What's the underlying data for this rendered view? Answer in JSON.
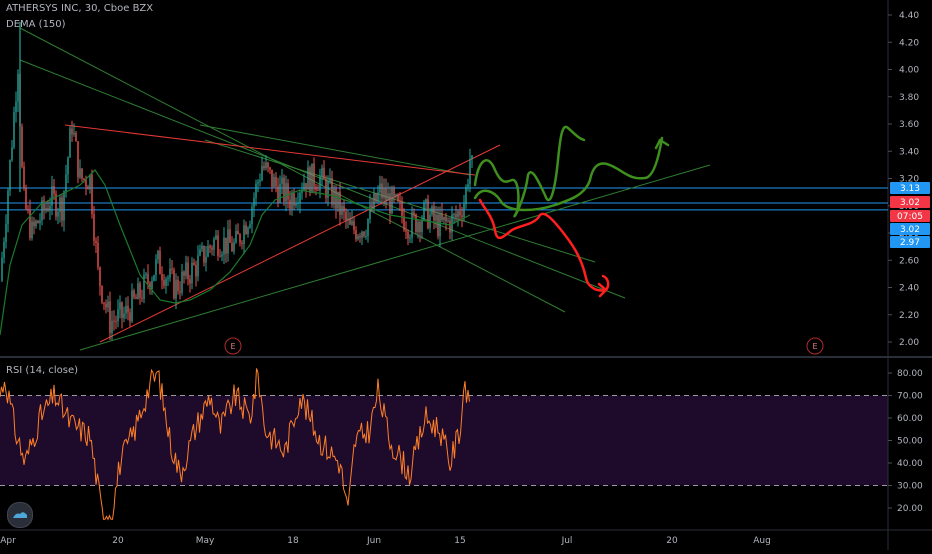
{
  "chart_data": [
    {
      "type": "candlestick",
      "title": "ATHERSYS INC, 30, Cboe BZX",
      "indicator": "DEMA (150)",
      "ylim": [
        1.88,
        4.48
      ],
      "y_ticks": [
        "4.40",
        "4.20",
        "4.00",
        "3.80",
        "3.60",
        "3.40",
        "3.20",
        "3.00",
        "2.80",
        "2.60",
        "2.40",
        "2.20",
        "2.00"
      ],
      "x_ticks": [
        "Apr",
        "20",
        "May",
        "18",
        "Jun",
        "15",
        "Jul",
        "20",
        "Aug"
      ],
      "price_tags": [
        {
          "label": "3.13",
          "value": 3.13,
          "color": "#2196f3"
        },
        {
          "label": "3.02",
          "value": 3.02,
          "color": "#f23645"
        },
        {
          "label": "07:05",
          "value": 2.95,
          "color": "#f23645"
        },
        {
          "label": "3.02",
          "value": 3.02,
          "color": "#2196f3"
        },
        {
          "label": "2.97",
          "value": 2.97,
          "color": "#2196f3"
        }
      ],
      "earnings_markers": [
        "E",
        "E"
      ],
      "colors": {
        "up": "#26a69a",
        "down": "#ef5350",
        "dema": "#1b7a2b",
        "support": "#2196f3",
        "trend_red": "#e53935",
        "trend_green": "#2e7d32",
        "bull_path": "#3f8f1e",
        "bear_path": "#ff1f1f"
      }
    },
    {
      "type": "line",
      "title": "RSI (14, close)",
      "ylim": [
        14,
        86
      ],
      "y_ticks": [
        "80.00",
        "70.00",
        "60.00",
        "50.00",
        "40.00",
        "30.00",
        "20.00"
      ],
      "overbought": 70,
      "oversold": 30,
      "colors": {
        "line": "#ff7f27",
        "band": "#1e0b2c",
        "bands_line": "#9a9aa0"
      }
    }
  ]
}
